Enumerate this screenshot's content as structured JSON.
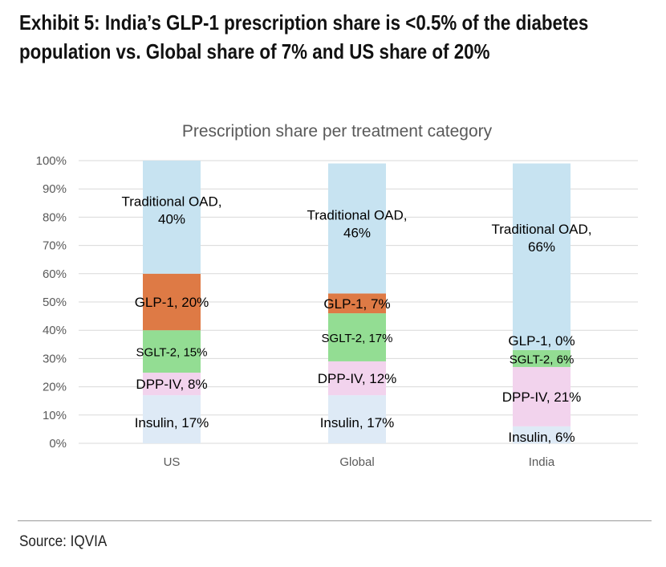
{
  "exhibit_title_lines": [
    "Exhibit 5: India’s GLP-1 prescription share is <0.5% of the diabetes",
    "population vs. Global share of 7% and US share of 20%"
  ],
  "source": "Source: IQVIA",
  "chart_data": {
    "type": "bar",
    "stacked": true,
    "title": "Prescription share per treatment category",
    "categories": [
      "US",
      "Global",
      "India"
    ],
    "y_ticks": [
      "0%",
      "10%",
      "20%",
      "30%",
      "40%",
      "50%",
      "60%",
      "70%",
      "80%",
      "90%",
      "100%"
    ],
    "ylim": [
      0,
      100
    ],
    "grid": true,
    "legend": "none",
    "series": [
      {
        "name": "Insulin",
        "color": "#deeaf6",
        "values": [
          17,
          17,
          6
        ],
        "labels": [
          "Insulin, 17%",
          "Insulin, 17%",
          "Insulin, 6%"
        ]
      },
      {
        "name": "DPP-IV",
        "color": "#f2d3ed",
        "values": [
          8,
          12,
          21
        ],
        "labels": [
          "DPP-IV, 8%",
          "DPP-IV, 12%",
          "DPP-IV, 21%"
        ]
      },
      {
        "name": "SGLT-2",
        "color": "#93dd93",
        "values": [
          15,
          17,
          6
        ],
        "labels": [
          "SGLT-2, 15%",
          "SGLT-2, 17%",
          "SGLT-2, 6%"
        ]
      },
      {
        "name": "GLP-1",
        "color": "#de7a45",
        "values": [
          20,
          7,
          0
        ],
        "labels": [
          "GLP-1, 20%",
          "GLP-1, 7%",
          "GLP-1, 0%"
        ]
      },
      {
        "name": "Traditional OAD",
        "color": "#c7e3f1",
        "values": [
          40,
          46,
          66
        ],
        "labels": [
          [
            "Traditional OAD,",
            "40%"
          ],
          [
            "Traditional OAD,",
            "46%"
          ],
          [
            "Traditional OAD,",
            "66%"
          ]
        ]
      }
    ]
  }
}
